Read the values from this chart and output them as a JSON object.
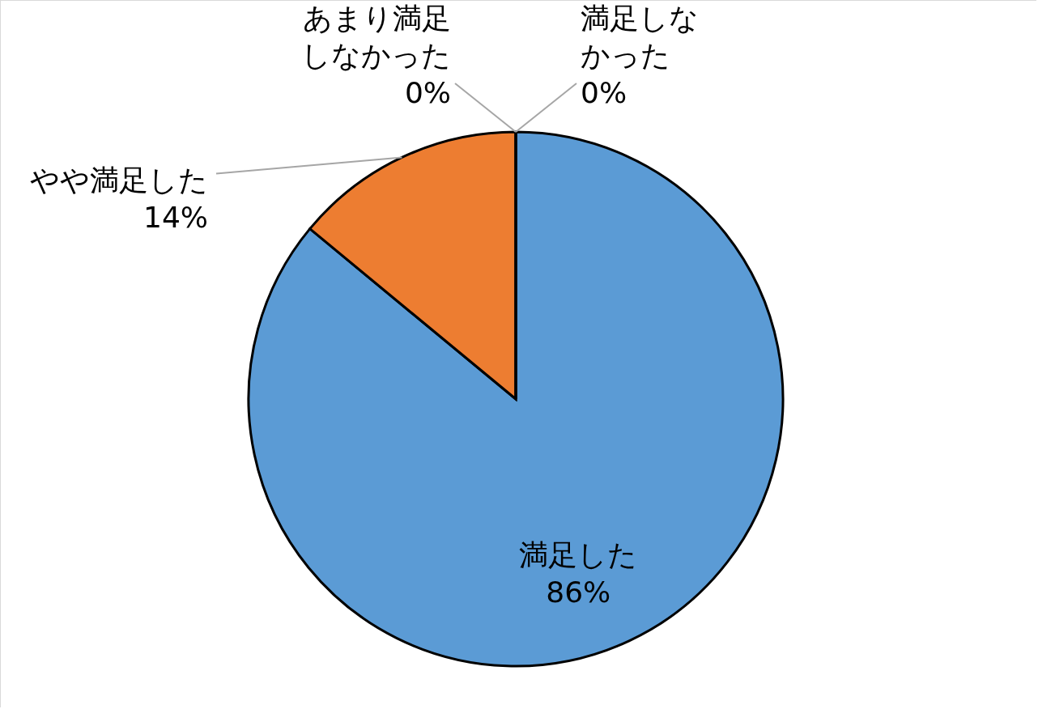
{
  "chart_data": {
    "type": "pie",
    "categories": [
      "満足した",
      "やや満足した",
      "あまり満足しなかった",
      "満足しなかった"
    ],
    "values": [
      86,
      14,
      0,
      0
    ],
    "colors": [
      "#5b9bd5",
      "#ed7d31",
      "#a5a5a5",
      "#ffc000"
    ],
    "value_labels": [
      "86%",
      "14%",
      "0%",
      "0%"
    ]
  }
}
